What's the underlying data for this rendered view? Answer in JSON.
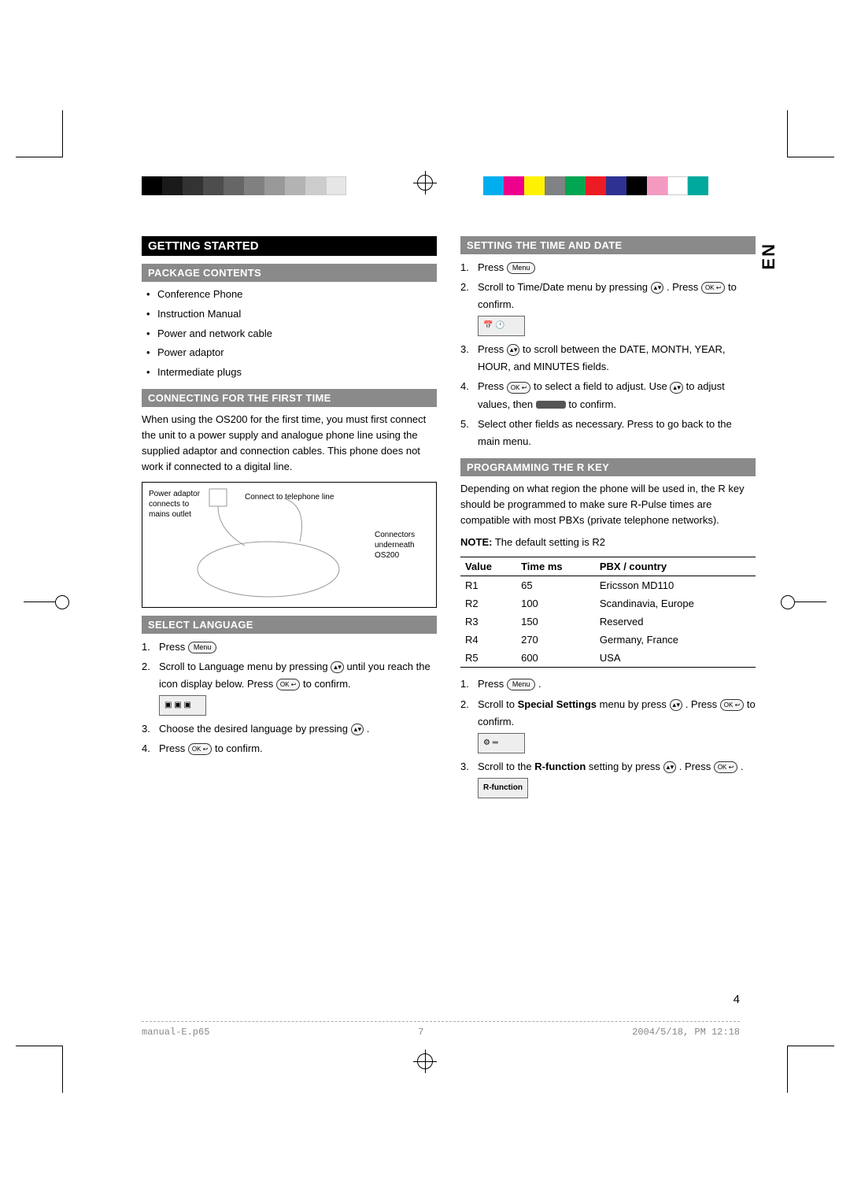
{
  "lang_tab": "EN",
  "page_number": "4",
  "footer": {
    "file": "manual-E.p65",
    "page": "7",
    "timestamp": "2004/5/18, PM 12:18"
  },
  "color_bar_gray": [
    "#000000",
    "#1a1a1a",
    "#333333",
    "#4d4d4d",
    "#666666",
    "#808080",
    "#999999",
    "#b3b3b3",
    "#cccccc",
    "#e6e6e6",
    "#ffffff"
  ],
  "color_bar_color": [
    "#00aeef",
    "#ec008c",
    "#fff200",
    "#808285",
    "#00a651",
    "#ed1c24",
    "#2e3192",
    "#000000",
    "#f49ac1",
    "#ffffff",
    "#00a99d"
  ],
  "left": {
    "main_heading": "GETTING STARTED",
    "package": {
      "heading": "PACKAGE CONTENTS",
      "items": [
        "Conference Phone",
        "Instruction Manual",
        "Power and network cable",
        "Power adaptor",
        "Intermediate plugs"
      ]
    },
    "connecting": {
      "heading": "CONNECTING FOR THE FIRST TIME",
      "text": "When using the OS200 for the first time, you must first connect the unit to a power supply and analogue phone line using the supplied adaptor and connection cables. This phone does not work if connected to a digital line.",
      "diagram": {
        "label1": "Power adaptor connects to mains outlet",
        "label2": "Connect to telephone line",
        "label3": "Connectors underneath OS200"
      }
    },
    "language": {
      "heading": "SELECT LANGUAGE",
      "steps": {
        "s1": "Press",
        "s2a": "Scroll to Language menu by pressing",
        "s2b": "until you reach the icon display below. Press",
        "s2c": "to confirm.",
        "s3": "Choose the desired language by pressing",
        "s4a": "Press",
        "s4b": "to confirm."
      }
    }
  },
  "right": {
    "timedate": {
      "heading": "SETTING THE TIME AND DATE",
      "s1": "Press",
      "s2a": "Scroll to Time/Date menu by pressing",
      "s2b": ". Press",
      "s2c": "to confirm.",
      "s3a": "Press",
      "s3b": "to scroll between the DATE, MONTH, YEAR, HOUR, and MINUTES fields.",
      "s4a": "Press",
      "s4b": "to select a field to adjust. Use",
      "s4c": "to adjust values, then",
      "s4d": "to confirm.",
      "s5": "Select other fields as necessary. Press          to go back to the main menu."
    },
    "rkey": {
      "heading": "PROGRAMMING THE R KEY",
      "intro": "Depending on what region the phone will be used in, the R key should be programmed to make sure R-Pulse times are compatible with most PBXs (private telephone networks).",
      "note_label": "NOTE:",
      "note_text": "The default setting is R2",
      "table": {
        "headers": [
          "Value",
          "Time ms",
          "PBX / country"
        ],
        "rows": [
          [
            "R1",
            "65",
            "Ericsson MD110"
          ],
          [
            "R2",
            "100",
            "Scandinavia, Europe"
          ],
          [
            "R3",
            "150",
            "Reserved"
          ],
          [
            "R4",
            "270",
            "Germany, France"
          ],
          [
            "R5",
            "600",
            "USA"
          ]
        ]
      },
      "s1": "Press",
      "s2a": "Scroll to",
      "s2b": "Special Settings",
      "s2c": "menu by press",
      "s2d": ". Press",
      "s2e": "to confirm.",
      "s3a": "Scroll to the",
      "s3b": "R-function",
      "s3c": "setting by press",
      "s3d": ". Press",
      "lcd_rfunction": "R-function"
    }
  },
  "btn_labels": {
    "menu": "Menu",
    "ok": "OK ↩"
  }
}
